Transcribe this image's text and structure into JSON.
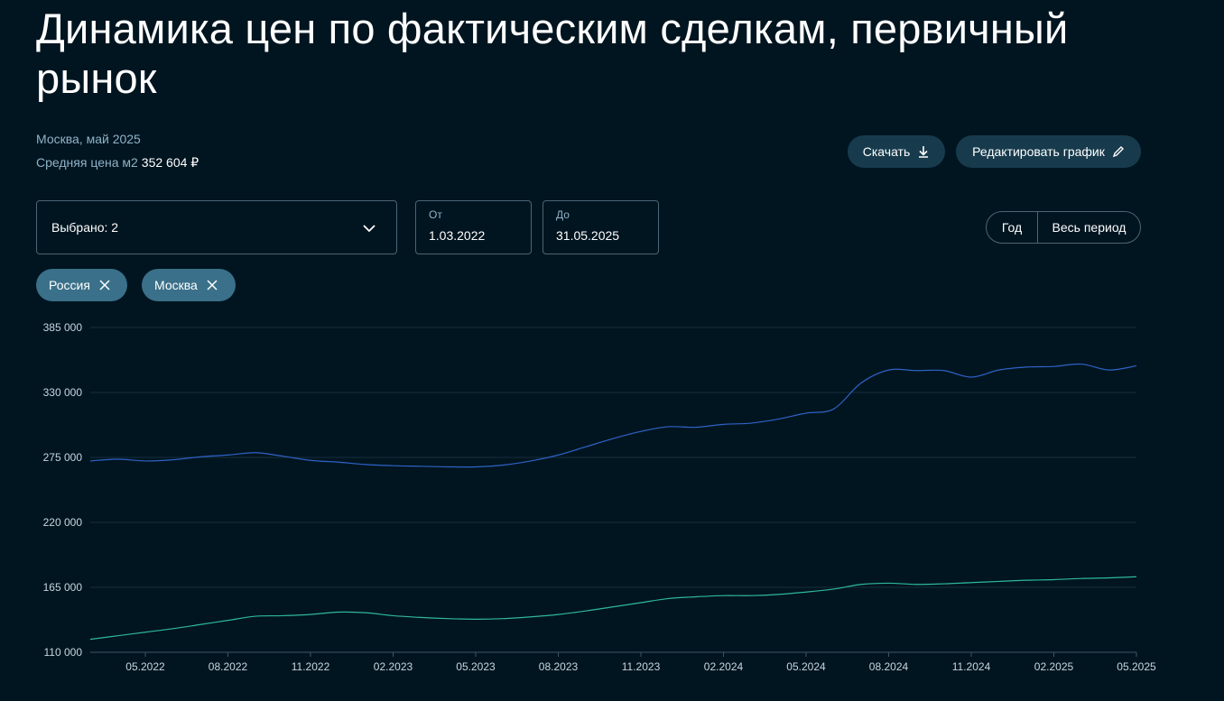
{
  "header": {
    "title": "Динамика цен по фактическим сделкам, первичный рынок",
    "subtitle": "Москва, май 2025",
    "avg_label": "Средняя цена м2",
    "avg_value": "352 604 ₽"
  },
  "actions": {
    "download_label": "Скачать",
    "edit_label": "Редактировать график"
  },
  "filters": {
    "selected_label": "Выбрано: 2",
    "from_label": "От",
    "from_value": "1.03.2022",
    "to_label": "До",
    "to_value": "31.05.2025",
    "period_year": "Год",
    "period_all": "Весь период",
    "chips": [
      "Россия",
      "Москва"
    ]
  },
  "colors": {
    "moscow_line": "#2f62c6",
    "russia_line": "#2fb89a",
    "chip_bg": "#3a7089",
    "button_bg": "#173b4d"
  },
  "chart_data": {
    "type": "line",
    "ylim": [
      110000,
      385000
    ],
    "y_ticks": [
      110000,
      165000,
      220000,
      275000,
      330000,
      385000
    ],
    "y_tick_labels": [
      "110 000",
      "165 000",
      "220 000",
      "275 000",
      "330 000",
      "385 000"
    ],
    "x_tick_labels": [
      "05.2022",
      "08.2022",
      "11.2022",
      "02.2023",
      "05.2023",
      "08.2023",
      "11.2023",
      "02.2024",
      "05.2024",
      "08.2024",
      "11.2024",
      "02.2025",
      "05.2025"
    ],
    "x": [
      "03.2022",
      "04.2022",
      "05.2022",
      "06.2022",
      "07.2022",
      "08.2022",
      "09.2022",
      "10.2022",
      "11.2022",
      "12.2022",
      "01.2023",
      "02.2023",
      "03.2023",
      "04.2023",
      "05.2023",
      "06.2023",
      "07.2023",
      "08.2023",
      "09.2023",
      "10.2023",
      "11.2023",
      "12.2023",
      "01.2024",
      "02.2024",
      "03.2024",
      "04.2024",
      "05.2024",
      "06.2024",
      "07.2024",
      "08.2024",
      "09.2024",
      "10.2024",
      "11.2024",
      "12.2024",
      "01.2025",
      "02.2025",
      "03.2025",
      "04.2025",
      "05.2025"
    ],
    "series": [
      {
        "values": [
          272000,
          273500,
          272000,
          273000,
          275500,
          277000,
          279000,
          276000,
          272500,
          271000,
          269000,
          268000,
          267500,
          267000,
          267000,
          268500,
          272000,
          277000,
          284000,
          291000,
          297000,
          301000,
          300500,
          303000,
          304000,
          307500,
          312500,
          316000,
          338000,
          349000,
          348500,
          348500,
          343000,
          349000,
          351500,
          352000,
          354000,
          349000,
          352600
        ]
      },
      {
        "values": [
          121000,
          124000,
          127000,
          130000,
          133500,
          137000,
          140500,
          141000,
          142000,
          144000,
          143500,
          141000,
          139500,
          138500,
          138000,
          138500,
          140000,
          142000,
          145000,
          148500,
          152000,
          155500,
          157000,
          158000,
          158000,
          159000,
          161000,
          163500,
          167500,
          168500,
          167500,
          168000,
          169000,
          170000,
          171000,
          171500,
          172500,
          173000,
          174000
        ]
      }
    ]
  }
}
